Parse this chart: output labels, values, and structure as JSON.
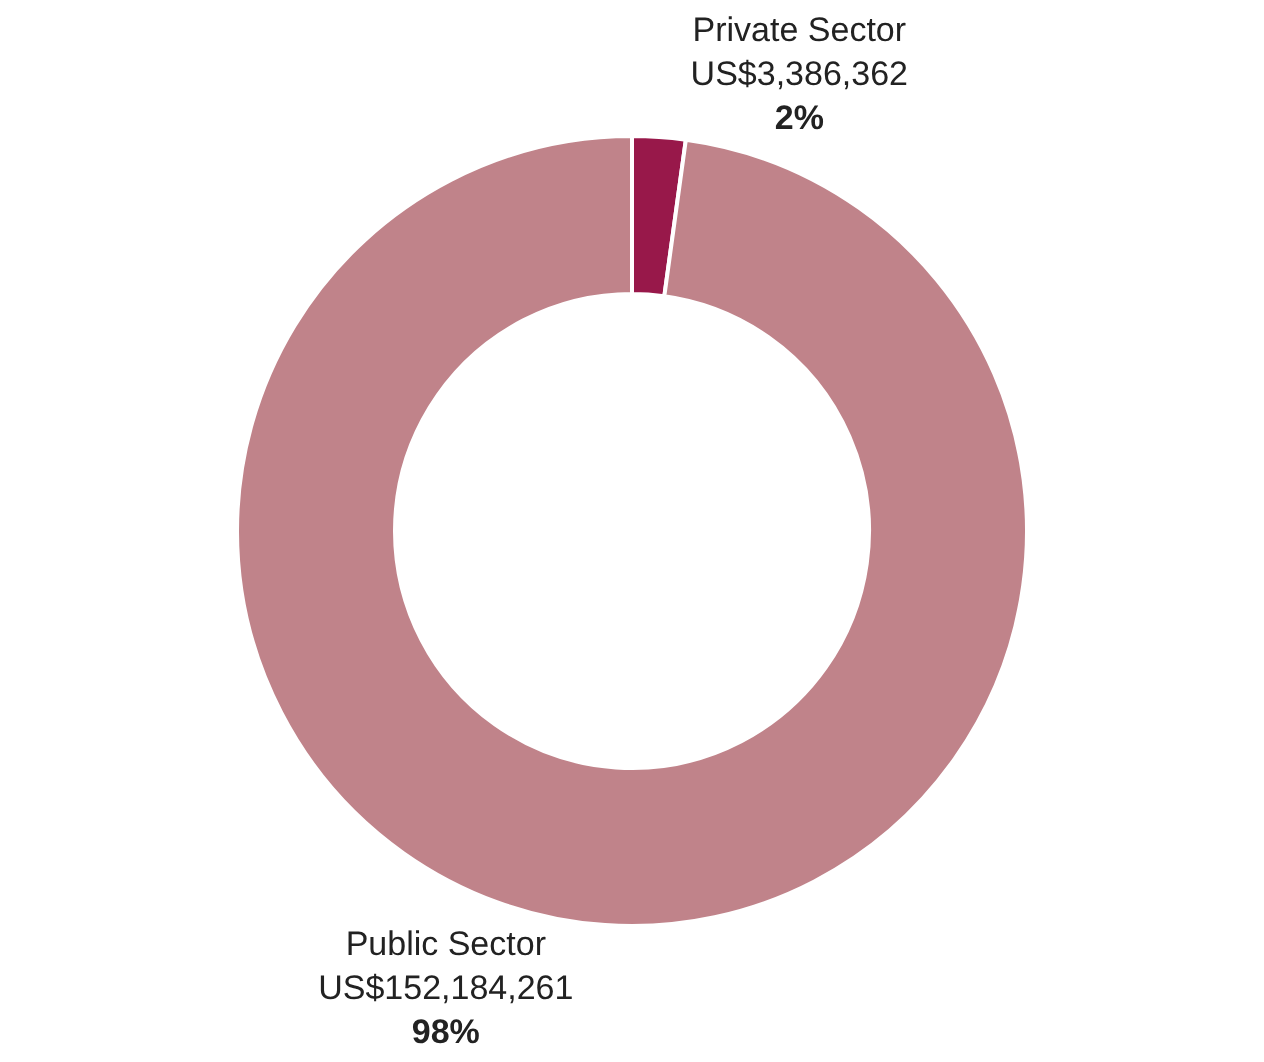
{
  "chart_data": {
    "type": "donut",
    "categories": [
      "Private Sector",
      "Public Sector"
    ],
    "values": [
      3386362,
      152184261
    ],
    "colors": [
      "#98184a",
      "#c0838a"
    ],
    "value_labels": [
      "US$3,386,362",
      "US$152,184,261"
    ],
    "annotations": [
      "2%",
      "98%"
    ],
    "legend": false
  }
}
